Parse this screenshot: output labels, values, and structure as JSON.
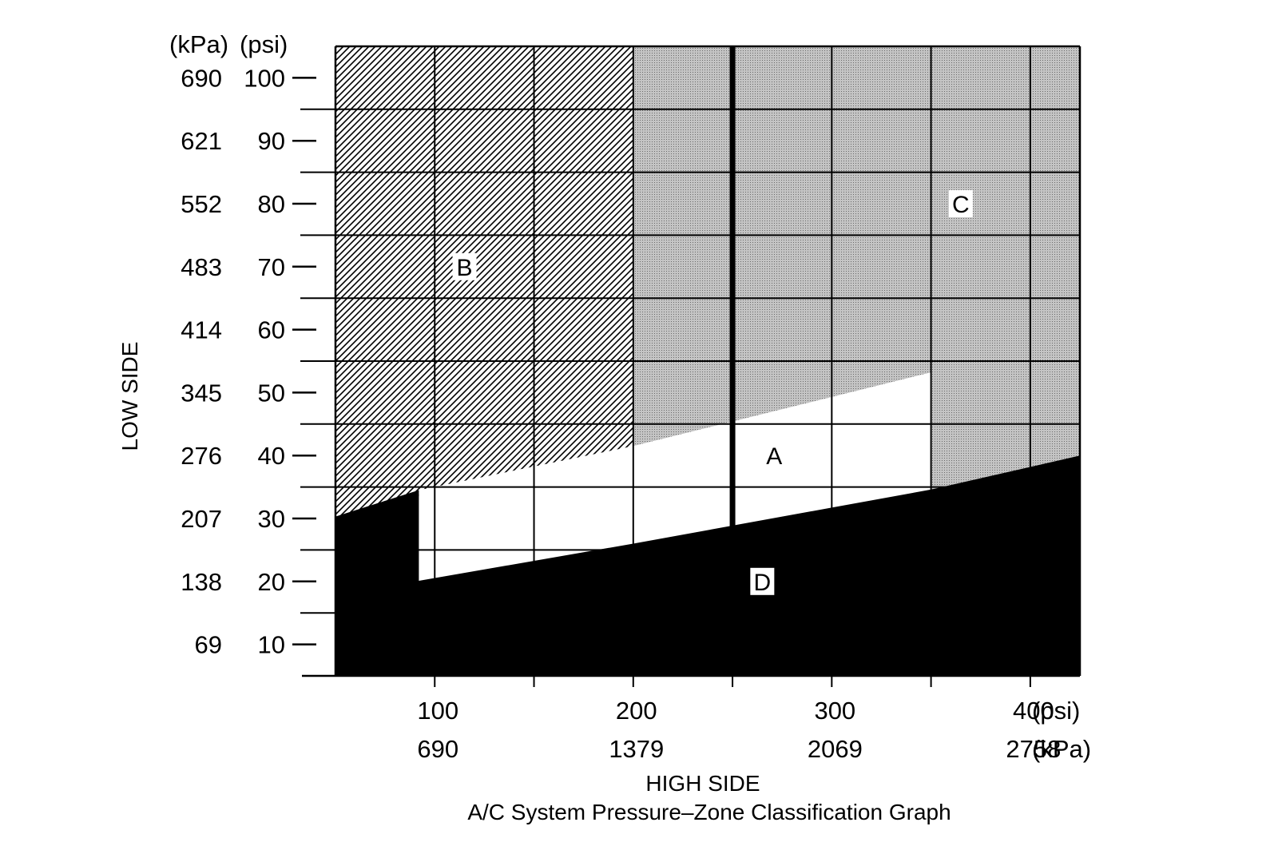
{
  "chart_data": {
    "type": "area",
    "title": "A/C System Pressure–Zone Classification Graph",
    "xlabel": "HIGH SIDE",
    "ylabel": "LOW SIDE",
    "x_unit_primary": "(psi)",
    "x_unit_secondary": "(kPa)",
    "y_unit_primary": "(psi)",
    "y_unit_secondary": "(kPa)",
    "xlim": [
      50,
      425
    ],
    "ylim": [
      5,
      105
    ],
    "x_ticks": [
      {
        "psi": 100,
        "psi_label": "100",
        "kpa_label": "690"
      },
      {
        "psi": 200,
        "psi_label": "200",
        "kpa_label": "1379"
      },
      {
        "psi": 300,
        "psi_label": "300",
        "kpa_label": "2069"
      },
      {
        "psi": 400,
        "psi_label": "400",
        "kpa_label": "2758"
      }
    ],
    "x_minor_ticks": [
      150,
      250,
      350
    ],
    "y_ticks": [
      {
        "psi": 100,
        "psi_label": "100",
        "kpa_label": "690"
      },
      {
        "psi": 90,
        "psi_label": "90",
        "kpa_label": "621"
      },
      {
        "psi": 80,
        "psi_label": "80",
        "kpa_label": "552"
      },
      {
        "psi": 70,
        "psi_label": "70",
        "kpa_label": "483"
      },
      {
        "psi": 60,
        "psi_label": "60",
        "kpa_label": "414"
      },
      {
        "psi": 50,
        "psi_label": "50",
        "kpa_label": "345"
      },
      {
        "psi": 40,
        "psi_label": "40",
        "kpa_label": "276"
      },
      {
        "psi": 30,
        "psi_label": "30",
        "kpa_label": "207"
      },
      {
        "psi": 20,
        "psi_label": "20",
        "kpa_label": "138"
      },
      {
        "psi": 10,
        "psi_label": "10",
        "kpa_label": "69"
      }
    ],
    "y_minor_ticks": [
      95,
      85,
      75,
      65,
      55,
      45,
      35,
      25,
      15
    ],
    "grid": true,
    "highlight_line_x": 250,
    "zones": [
      {
        "label": "B",
        "fill": "hatch",
        "label_at": [
          115,
          70
        ],
        "polygon": [
          [
            50,
            105
          ],
          [
            200,
            105
          ],
          [
            200,
            41.5
          ],
          [
            50,
            30.3
          ]
        ]
      },
      {
        "label": "C",
        "fill": "stipple",
        "label_at": [
          365,
          80
        ],
        "polygon": [
          [
            200,
            105
          ],
          [
            425,
            105
          ],
          [
            425,
            40
          ],
          [
            350,
            34.6
          ],
          [
            350,
            53.2
          ],
          [
            200,
            41.5
          ]
        ]
      },
      {
        "label": "A",
        "fill": "white",
        "label_at": [
          271,
          40
        ],
        "polygon": [
          [
            92,
            34.5
          ],
          [
            200,
            41.5
          ],
          [
            350,
            53.2
          ],
          [
            350,
            34.6
          ],
          [
            200,
            26
          ],
          [
            92,
            20.1
          ]
        ]
      },
      {
        "label": "D",
        "fill": "black",
        "label_at": [
          265,
          20
        ],
        "polygon": [
          [
            50,
            30.3
          ],
          [
            92,
            34.5
          ],
          [
            92,
            20.1
          ],
          [
            200,
            26
          ],
          [
            350,
            34.6
          ],
          [
            425,
            40
          ],
          [
            425,
            5
          ],
          [
            50,
            5
          ]
        ]
      }
    ]
  }
}
